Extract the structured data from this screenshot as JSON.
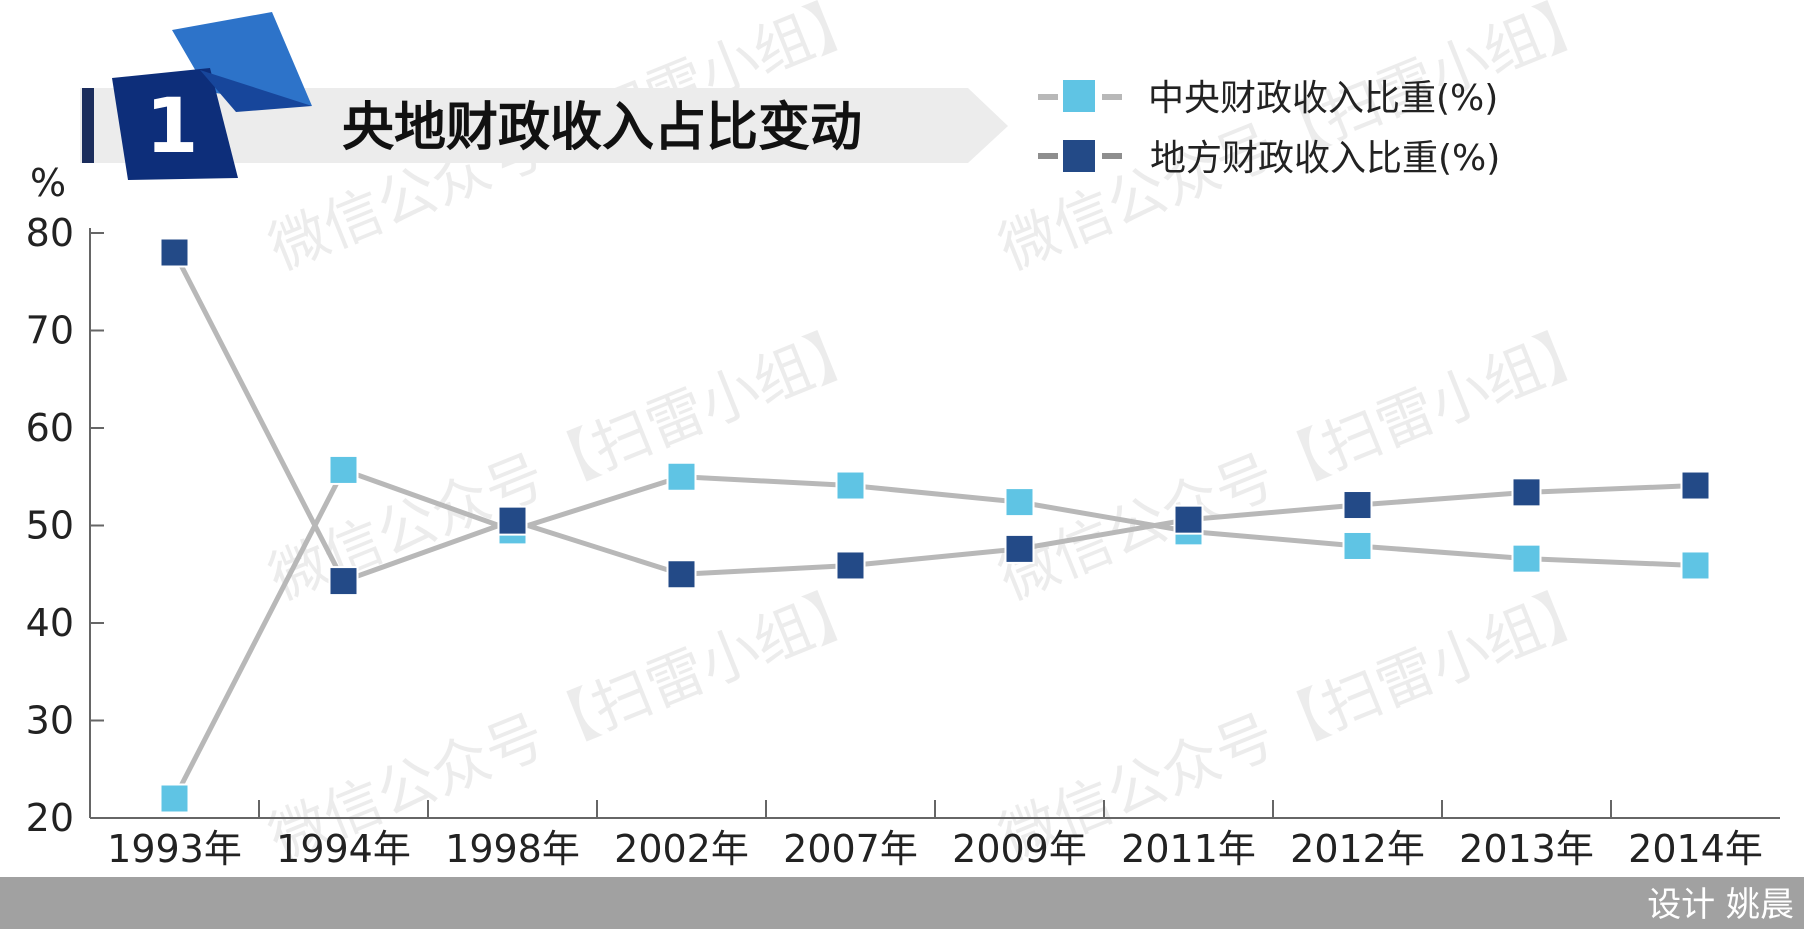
{
  "header": {
    "badge_number": "1",
    "title": "央地财政收入占比变动"
  },
  "footer": {
    "credit": "设计 姚晨"
  },
  "watermark": {
    "text": "微信公众号【扫雷小组】"
  },
  "colors": {
    "central": "#5fc4e4",
    "local": "#234a87",
    "line": "#b8b8b8",
    "axis": "#666666",
    "badge_dark": "#0d2e7a",
    "badge_light": "#2d73c9",
    "footer_band": "#a1a1a1",
    "title_band": "#ececec"
  },
  "chart_data": {
    "type": "line",
    "title": "央地财政收入占比变动",
    "ylabel": "%",
    "xlabel": "",
    "ylim": [
      20,
      80
    ],
    "yticks": [
      20,
      30,
      40,
      50,
      60,
      70,
      80
    ],
    "grid": false,
    "legend_position": "top-right",
    "categories": [
      "1993年",
      "1994年",
      "1998年",
      "2002年",
      "2007年",
      "2009年",
      "2011年",
      "2012年",
      "2013年",
      "2014年"
    ],
    "series": [
      {
        "name": "中央财政收入比重(%)",
        "color": "#5fc4e4",
        "values": [
          22.0,
          55.7,
          49.5,
          55.0,
          54.1,
          52.4,
          49.4,
          47.9,
          46.6,
          45.9
        ]
      },
      {
        "name": "地方财政收入比重(%)",
        "color": "#234a87",
        "values": [
          78.0,
          44.3,
          50.5,
          45.0,
          45.9,
          47.6,
          50.6,
          52.1,
          53.4,
          54.1
        ]
      }
    ]
  }
}
